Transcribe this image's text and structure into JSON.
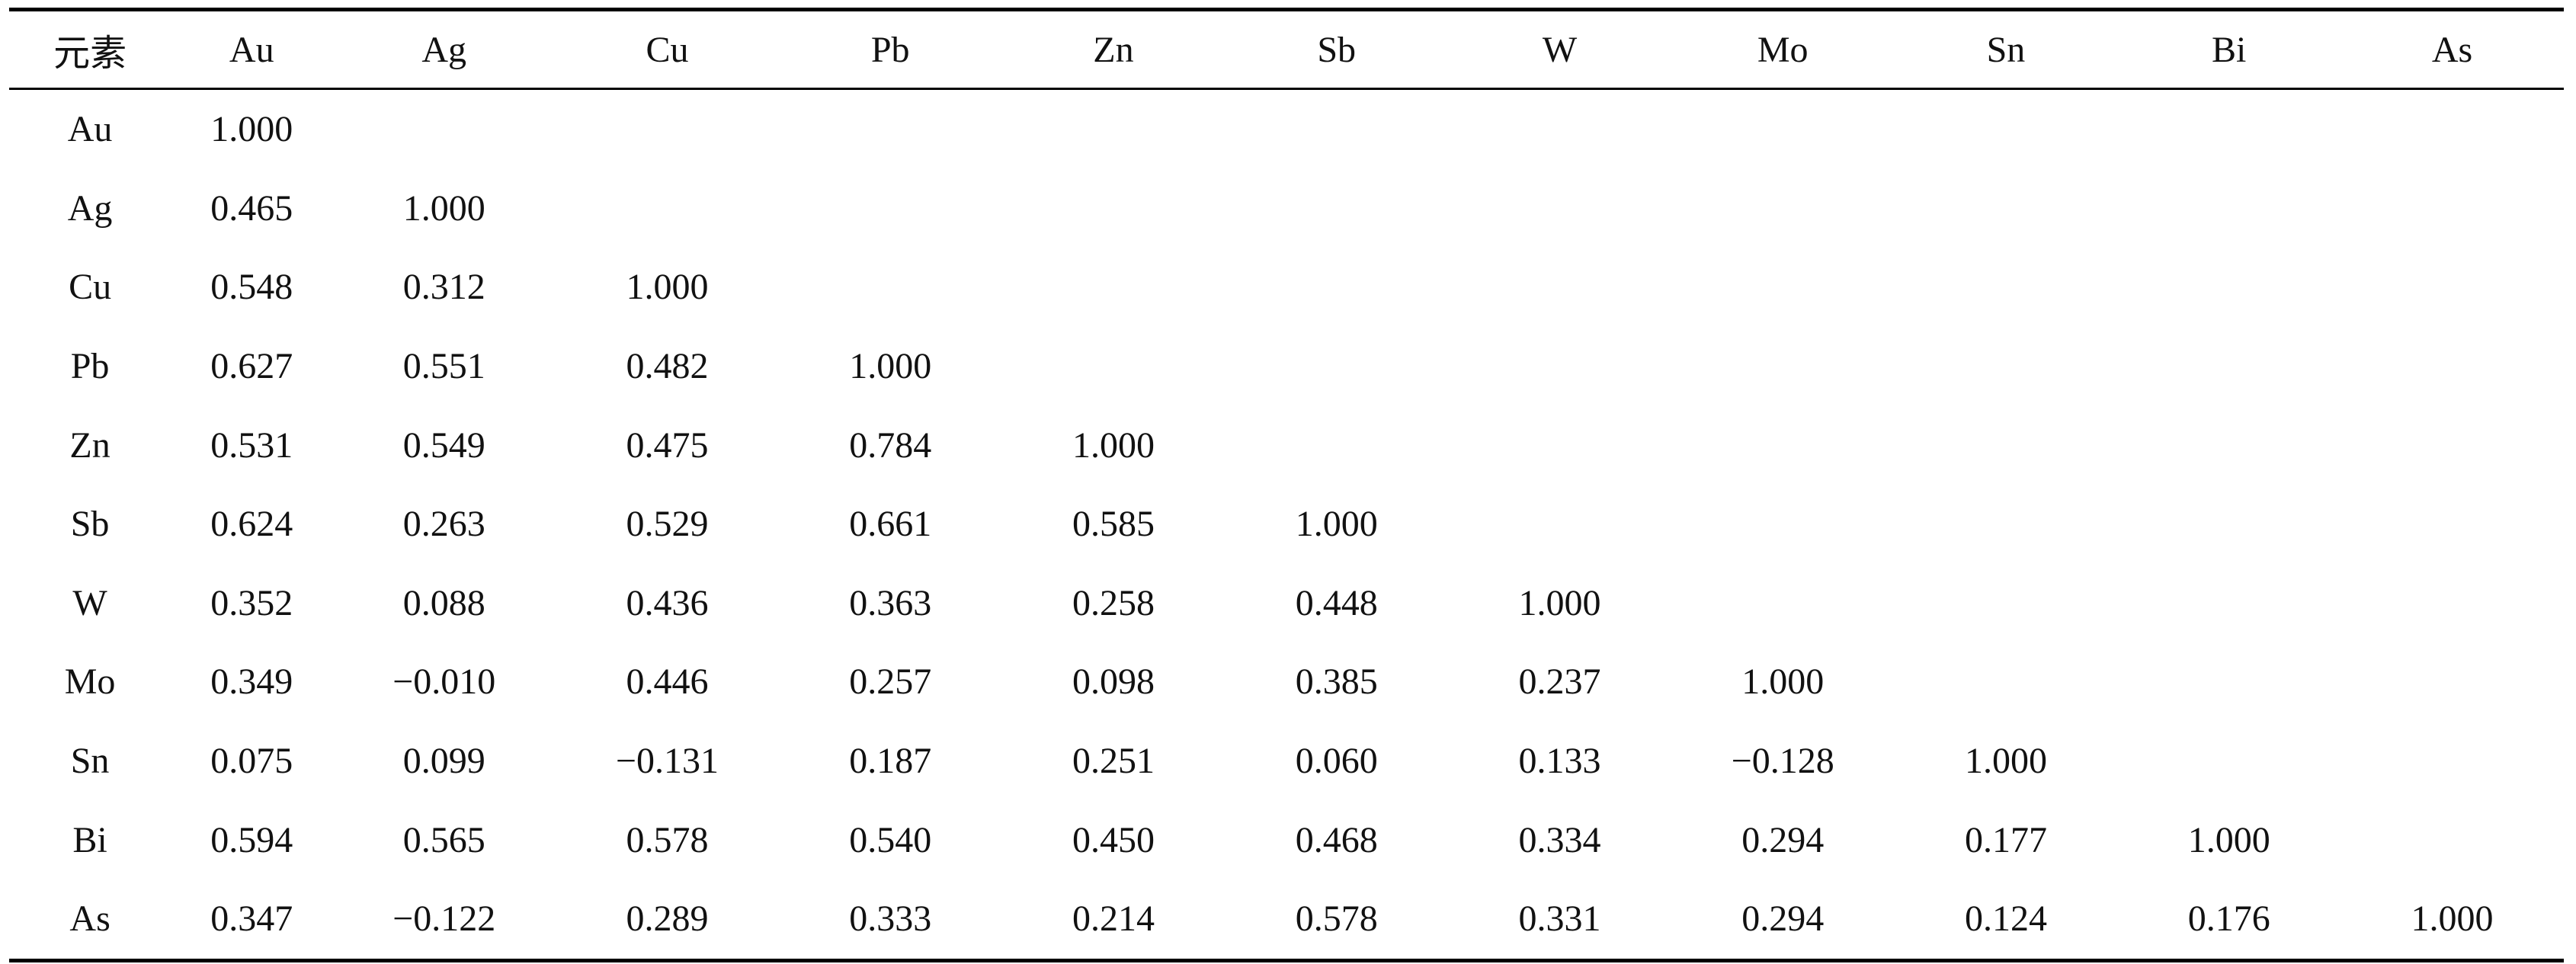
{
  "table": {
    "headers": [
      "元素",
      "Au",
      "Ag",
      "Cu",
      "Pb",
      "Zn",
      "Sb",
      "W",
      "Mo",
      "Sn",
      "Bi",
      "As"
    ],
    "rows": [
      [
        "Au",
        "1.000",
        "",
        "",
        "",
        "",
        "",
        "",
        "",
        "",
        "",
        ""
      ],
      [
        "Ag",
        "0.465",
        "1.000",
        "",
        "",
        "",
        "",
        "",
        "",
        "",
        "",
        ""
      ],
      [
        "Cu",
        "0.548",
        "0.312",
        "1.000",
        "",
        "",
        "",
        "",
        "",
        "",
        "",
        ""
      ],
      [
        "Pb",
        "0.627",
        "0.551",
        "0.482",
        "1.000",
        "",
        "",
        "",
        "",
        "",
        "",
        ""
      ],
      [
        "Zn",
        "0.531",
        "0.549",
        "0.475",
        "0.784",
        "1.000",
        "",
        "",
        "",
        "",
        "",
        ""
      ],
      [
        "Sb",
        "0.624",
        "0.263",
        "0.529",
        "0.661",
        "0.585",
        "1.000",
        "",
        "",
        "",
        "",
        ""
      ],
      [
        "W",
        "0.352",
        "0.088",
        "0.436",
        "0.363",
        "0.258",
        "0.448",
        "1.000",
        "",
        "",
        "",
        ""
      ],
      [
        "Mo",
        "0.349",
        "−0.010",
        "0.446",
        "0.257",
        "0.098",
        "0.385",
        "0.237",
        "1.000",
        "",
        "",
        ""
      ],
      [
        "Sn",
        "0.075",
        "0.099",
        "−0.131",
        "0.187",
        "0.251",
        "0.060",
        "0.133",
        "−0.128",
        "1.000",
        "",
        ""
      ],
      [
        "Bi",
        "0.594",
        "0.565",
        "0.578",
        "0.540",
        "0.450",
        "0.468",
        "0.334",
        "0.294",
        "0.177",
        "1.000",
        ""
      ],
      [
        "As",
        "0.347",
        "−0.122",
        "0.289",
        "0.333",
        "0.214",
        "0.578",
        "0.331",
        "0.294",
        "0.124",
        "0.176",
        "1.000"
      ]
    ]
  }
}
